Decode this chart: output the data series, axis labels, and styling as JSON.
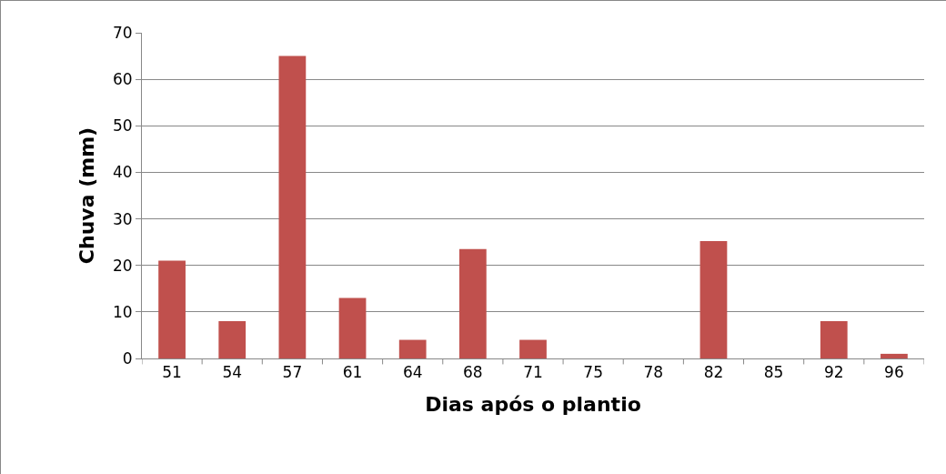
{
  "chart_data": {
    "type": "bar",
    "xlabel": "Dias após o plantio",
    "ylabel": "Chuva (mm)",
    "categories": [
      "51",
      "54",
      "57",
      "61",
      "64",
      "68",
      "71",
      "75",
      "78",
      "82",
      "85",
      "92",
      "96"
    ],
    "values": [
      21,
      8,
      65,
      13,
      4,
      23.5,
      4,
      0,
      0,
      25.2,
      0,
      8,
      1
    ],
    "color": "#c0504d",
    "ylim": [
      0,
      70
    ],
    "yticks": [
      0,
      10,
      20,
      30,
      40,
      50,
      60,
      70
    ],
    "grid": "y"
  }
}
